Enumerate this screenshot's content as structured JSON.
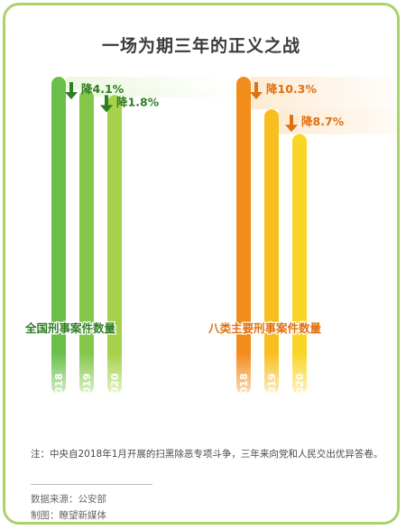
{
  "title": "一场为期三年的正义之战",
  "note": "注：中央自2018年1月开展的扫黑除恶专项斗争，三年来向党和人民交出优异答卷。",
  "source": "数据来源：公安部",
  "maker": "制图：瞭望新媒体",
  "chart_data": [
    {
      "type": "bar",
      "label": "全国刑事案件数量",
      "categories": [
        "2018",
        "2019",
        "2020"
      ],
      "relative_values": [
        1.0,
        0.959,
        0.942
      ],
      "changes": [
        "降4.1%",
        "降1.8%"
      ],
      "colors": [
        "#6abf4b",
        "#84c84a",
        "#a6d14a"
      ],
      "label_color": "#2f7d24",
      "change_color": "#2f7d24"
    },
    {
      "type": "bar",
      "label": "八类主要刑事案件数量",
      "categories": [
        "2018",
        "2019",
        "2020"
      ],
      "relative_values": [
        1.0,
        0.897,
        0.819
      ],
      "changes": [
        "降10.3%",
        "降8.7%"
      ],
      "colors": [
        "#f28c1a",
        "#f7bf1e",
        "#f9d626"
      ],
      "label_color": "#e0700f",
      "change_color": "#e0700f"
    }
  ]
}
